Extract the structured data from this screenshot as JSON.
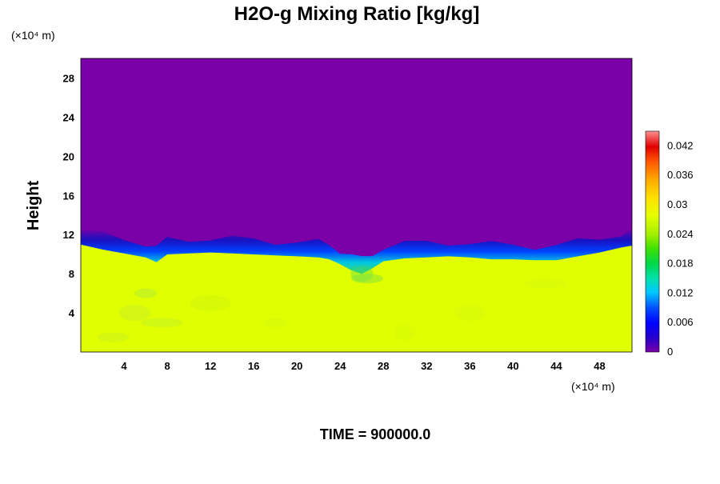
{
  "chart_data": {
    "type": "heatmap",
    "title": "H2O-g Mixing Ratio [kg/kg]",
    "xlabel": "",
    "ylabel": "Height",
    "x_unit": "(×10⁴ m)",
    "y_unit": "(×10⁴ m)",
    "xlim": [
      0,
      51
    ],
    "ylim": [
      0,
      30
    ],
    "x_ticks": [
      4,
      8,
      12,
      16,
      20,
      24,
      28,
      32,
      36,
      40,
      44,
      48
    ],
    "y_ticks": [
      4,
      8,
      12,
      16,
      20,
      24,
      28
    ],
    "colorbar": {
      "range": [
        0,
        0.045
      ],
      "ticks": [
        0,
        0.006,
        0.012,
        0.018,
        0.024,
        0.03,
        0.036,
        0.042
      ],
      "tick_labels": [
        "0",
        "0.006",
        "0.012",
        "0.018",
        "0.024",
        "0.03",
        "0.036",
        "0.042"
      ]
    },
    "field": {
      "upper_value": 0,
      "lower_value": 0.03,
      "boundary_height": [
        [
          0,
          11.3
        ],
        [
          2,
          10.8
        ],
        [
          4,
          10.4
        ],
        [
          6,
          10.0
        ],
        [
          7,
          9.5
        ],
        [
          8,
          10.3
        ],
        [
          10,
          10.4
        ],
        [
          12,
          10.5
        ],
        [
          14,
          10.4
        ],
        [
          16,
          10.3
        ],
        [
          18,
          10.2
        ],
        [
          20,
          10.1
        ],
        [
          22,
          10.0
        ],
        [
          23,
          9.8
        ],
        [
          24,
          9.3
        ],
        [
          25,
          8.7
        ],
        [
          26,
          8.3
        ],
        [
          27,
          8.9
        ],
        [
          28,
          9.6
        ],
        [
          30,
          9.9
        ],
        [
          32,
          10.0
        ],
        [
          34,
          10.1
        ],
        [
          36,
          10.0
        ],
        [
          38,
          9.8
        ],
        [
          40,
          9.8
        ],
        [
          42,
          9.7
        ],
        [
          44,
          9.7
        ],
        [
          46,
          10.1
        ],
        [
          48,
          10.5
        ],
        [
          50,
          11.0
        ],
        [
          51,
          11.2
        ]
      ]
    },
    "footer": "TIME = 900000.0"
  }
}
